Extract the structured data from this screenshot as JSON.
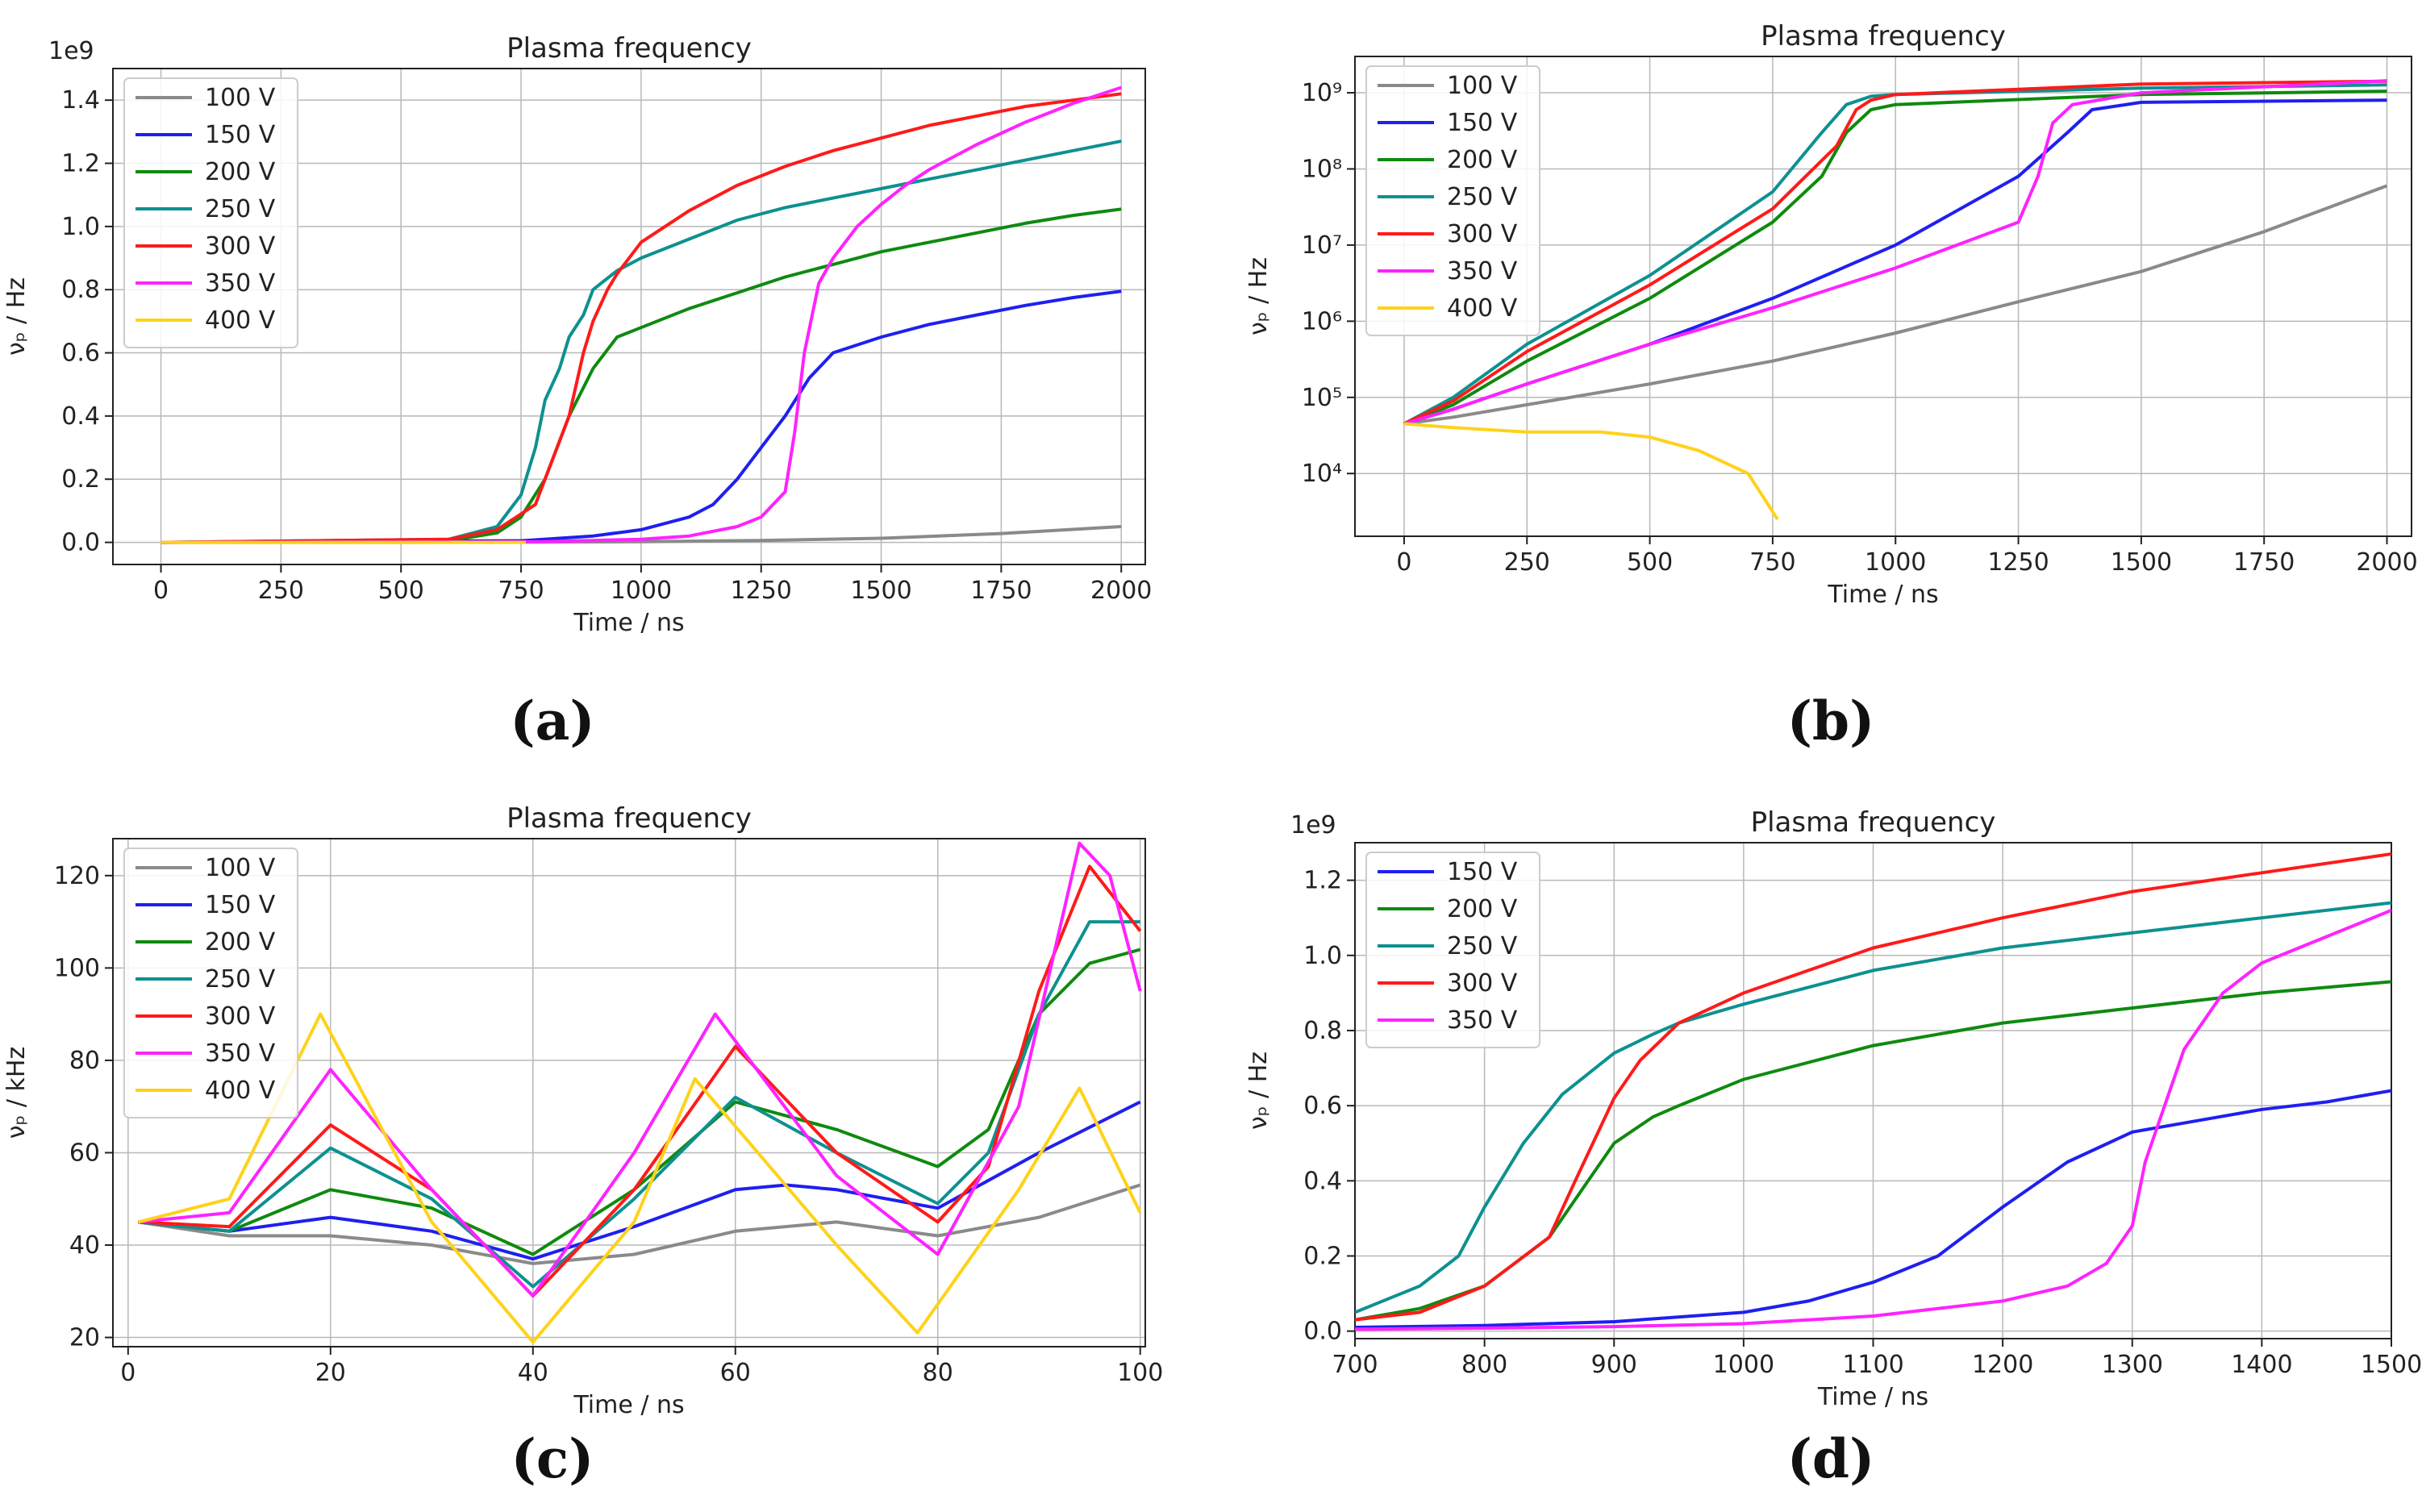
{
  "captions": {
    "a": "(a)",
    "b": "(b)",
    "c": "(c)",
    "d": "(d)"
  },
  "colors": {
    "100 V": "#8a8a8a",
    "150 V": "#1f1ff0",
    "200 V": "#0f8a0f",
    "250 V": "#0e9090",
    "300 V": "#ff1a1a",
    "350 V": "#ff22ff",
    "400 V": "#ffd21a"
  },
  "chart_data": [
    {
      "id": "a",
      "type": "line",
      "title": "Plasma frequency",
      "xlabel": "Time / ns",
      "ylabel": "νₚ / Hz",
      "scale_label": "1e9",
      "yscale": "linear",
      "xlim": [
        -100,
        2050
      ],
      "ylim": [
        -0.07,
        1.5
      ],
      "xticks": [
        0,
        250,
        500,
        750,
        1000,
        1250,
        1500,
        1750,
        2000
      ],
      "xtick_labels": [
        "0",
        "250",
        "500",
        "750",
        "1000",
        "1250",
        "1500",
        "1750",
        "2000"
      ],
      "yticks": [
        0,
        0.2,
        0.4,
        0.6,
        0.8,
        1.0,
        1.2,
        1.4
      ],
      "ytick_labels": [
        "0.0",
        "0.2",
        "0.4",
        "0.6",
        "0.8",
        "1.0",
        "1.2",
        "1.4"
      ],
      "legend": [
        "100 V",
        "150 V",
        "200 V",
        "250 V",
        "300 V",
        "350 V",
        "400 V"
      ],
      "legend_position": "top-left",
      "series": [
        {
          "name": "100 V",
          "x": [
            0,
            500,
            1000,
            1250,
            1500,
            1750,
            2000
          ],
          "y": [
            0,
            0,
            0.002,
            0.006,
            0.013,
            0.028,
            0.05
          ]
        },
        {
          "name": "150 V",
          "x": [
            0,
            750,
            900,
            1000,
            1100,
            1150,
            1200,
            1250,
            1300,
            1350,
            1400,
            1500,
            1600,
            1700,
            1800,
            1900,
            2000
          ],
          "y": [
            0,
            0.005,
            0.02,
            0.04,
            0.08,
            0.12,
            0.2,
            0.3,
            0.4,
            0.52,
            0.6,
            0.65,
            0.69,
            0.72,
            0.75,
            0.775,
            0.795
          ]
        },
        {
          "name": "200 V",
          "x": [
            0,
            600,
            700,
            750,
            800,
            850,
            900,
            950,
            1000,
            1100,
            1200,
            1300,
            1400,
            1500,
            1600,
            1700,
            1800,
            1900,
            2000
          ],
          "y": [
            0,
            0.005,
            0.03,
            0.08,
            0.2,
            0.4,
            0.55,
            0.65,
            0.68,
            0.74,
            0.79,
            0.84,
            0.88,
            0.92,
            0.95,
            0.98,
            1.01,
            1.035,
            1.055
          ]
        },
        {
          "name": "250 V",
          "x": [
            0,
            600,
            700,
            750,
            780,
            800,
            830,
            850,
            880,
            900,
            950,
            1000,
            1100,
            1200,
            1300,
            1400,
            1500,
            1600,
            1700,
            1800,
            1900,
            2000
          ],
          "y": [
            0,
            0.01,
            0.05,
            0.15,
            0.3,
            0.45,
            0.55,
            0.65,
            0.72,
            0.8,
            0.86,
            0.9,
            0.96,
            1.02,
            1.06,
            1.09,
            1.12,
            1.15,
            1.18,
            1.21,
            1.24,
            1.27
          ]
        },
        {
          "name": "300 V",
          "x": [
            0,
            600,
            700,
            780,
            800,
            850,
            880,
            900,
            930,
            950,
            1000,
            1100,
            1200,
            1300,
            1400,
            1500,
            1600,
            1700,
            1800,
            1900,
            2000
          ],
          "y": [
            0,
            0.01,
            0.04,
            0.12,
            0.2,
            0.4,
            0.6,
            0.7,
            0.8,
            0.85,
            0.95,
            1.05,
            1.13,
            1.19,
            1.24,
            1.28,
            1.32,
            1.35,
            1.38,
            1.4,
            1.42
          ]
        },
        {
          "name": "350 V",
          "x": [
            0,
            800,
            1000,
            1100,
            1200,
            1250,
            1300,
            1320,
            1340,
            1370,
            1400,
            1450,
            1500,
            1550,
            1600,
            1700,
            1800,
            1900,
            2000
          ],
          "y": [
            0,
            0.002,
            0.01,
            0.02,
            0.05,
            0.08,
            0.16,
            0.35,
            0.6,
            0.82,
            0.9,
            1.0,
            1.07,
            1.13,
            1.18,
            1.26,
            1.33,
            1.39,
            1.44
          ]
        },
        {
          "name": "400 V",
          "x": [
            0,
            250,
            500,
            760
          ],
          "y": [
            0,
            0,
            0,
            0
          ]
        }
      ]
    },
    {
      "id": "b",
      "type": "line",
      "title": "Plasma frequency",
      "xlabel": "Time / ns",
      "ylabel": "νₚ / Hz",
      "yscale": "log",
      "xlim": [
        -100,
        2050
      ],
      "ylim": [
        1500,
        3000000000
      ],
      "xticks": [
        0,
        250,
        500,
        750,
        1000,
        1250,
        1500,
        1750,
        2000
      ],
      "xtick_labels": [
        "0",
        "250",
        "500",
        "750",
        "1000",
        "1250",
        "1500",
        "1750",
        "2000"
      ],
      "yticks": [
        10000,
        100000,
        1000000,
        10000000,
        100000000,
        1000000000
      ],
      "ytick_labels": [
        "10⁴",
        "10⁵",
        "10⁶",
        "10⁷",
        "10⁸",
        "10⁹"
      ],
      "legend": [
        "100 V",
        "150 V",
        "200 V",
        "250 V",
        "300 V",
        "350 V",
        "400 V"
      ],
      "legend_position": "top-left",
      "series": [
        {
          "name": "100 V",
          "x": [
            0,
            100,
            250,
            500,
            750,
            1000,
            1250,
            1500,
            1750,
            2000
          ],
          "y": [
            45000,
            55000,
            80000,
            150000,
            300000,
            700000,
            1800000,
            4500000,
            15000000,
            60000000
          ]
        },
        {
          "name": "150 V",
          "x": [
            0,
            100,
            250,
            500,
            750,
            1000,
            1250,
            1350,
            1400,
            1500,
            2000
          ],
          "y": [
            45000,
            70000,
            150000,
            500000,
            2000000,
            10000000,
            80000000,
            300000000,
            600000000,
            750000000,
            800000000
          ]
        },
        {
          "name": "200 V",
          "x": [
            0,
            100,
            250,
            500,
            750,
            850,
            900,
            950,
            1000,
            1500,
            2000
          ],
          "y": [
            45000,
            80000,
            300000,
            2000000,
            20000000,
            80000000,
            300000000,
            600000000,
            700000000,
            950000000,
            1050000000
          ]
        },
        {
          "name": "250 V",
          "x": [
            0,
            100,
            250,
            500,
            750,
            850,
            900,
            950,
            1000,
            1500,
            2000
          ],
          "y": [
            45000,
            100000,
            500000,
            4000000,
            50000000,
            300000000,
            700000000,
            900000000,
            950000000,
            1150000000,
            1270000000
          ]
        },
        {
          "name": "300 V",
          "x": [
            0,
            100,
            250,
            500,
            750,
            880,
            920,
            950,
            1000,
            1500,
            2000
          ],
          "y": [
            45000,
            90000,
            400000,
            3000000,
            30000000,
            200000000,
            600000000,
            800000000,
            950000000,
            1300000000,
            1420000000
          ]
        },
        {
          "name": "350 V",
          "x": [
            0,
            100,
            250,
            500,
            750,
            1000,
            1250,
            1290,
            1320,
            1360,
            1500,
            2000
          ],
          "y": [
            45000,
            70000,
            150000,
            500000,
            1500000,
            5000000,
            20000000,
            80000000,
            400000000,
            700000000,
            1000000000,
            1440000000
          ]
        },
        {
          "name": "400 V",
          "x": [
            0,
            100,
            250,
            400,
            500,
            600,
            700,
            730,
            760
          ],
          "y": [
            45000,
            40000,
            35000,
            35000,
            30000,
            20000,
            10000,
            5000,
            2500
          ]
        }
      ]
    },
    {
      "id": "c",
      "type": "line",
      "title": "Plasma frequency",
      "xlabel": "Time / ns",
      "ylabel": "νₚ / kHz",
      "yscale": "linear",
      "xlim": [
        -1.5,
        100.5
      ],
      "ylim": [
        18,
        128
      ],
      "xticks": [
        0,
        20,
        40,
        60,
        80,
        100
      ],
      "xtick_labels": [
        "0",
        "20",
        "40",
        "60",
        "80",
        "100"
      ],
      "yticks": [
        20,
        40,
        60,
        80,
        100,
        120
      ],
      "ytick_labels": [
        "20",
        "40",
        "60",
        "80",
        "100",
        "120"
      ],
      "legend": [
        "100 V",
        "150 V",
        "200 V",
        "250 V",
        "300 V",
        "350 V",
        "400 V"
      ],
      "legend_position": "top-left",
      "series": [
        {
          "name": "100 V",
          "x": [
            1,
            10,
            20,
            30,
            40,
            50,
            60,
            70,
            80,
            90,
            100
          ],
          "y": [
            45,
            42,
            42,
            40,
            36,
            38,
            43,
            45,
            42,
            46,
            53
          ]
        },
        {
          "name": "150 V",
          "x": [
            1,
            10,
            20,
            30,
            40,
            50,
            60,
            65,
            70,
            80,
            90,
            100
          ],
          "y": [
            45,
            43,
            46,
            43,
            37,
            44,
            52,
            53,
            52,
            48,
            60,
            71
          ]
        },
        {
          "name": "200 V",
          "x": [
            1,
            10,
            20,
            30,
            40,
            50,
            60,
            70,
            80,
            85,
            90,
            95,
            100
          ],
          "y": [
            45,
            43,
            52,
            48,
            38,
            52,
            71,
            65,
            57,
            65,
            90,
            101,
            104
          ]
        },
        {
          "name": "250 V",
          "x": [
            1,
            10,
            20,
            30,
            40,
            50,
            60,
            70,
            80,
            85,
            90,
            95,
            100
          ],
          "y": [
            45,
            43,
            61,
            50,
            31,
            50,
            72,
            60,
            49,
            60,
            90,
            110,
            110
          ]
        },
        {
          "name": "300 V",
          "x": [
            1,
            10,
            20,
            30,
            40,
            50,
            60,
            70,
            80,
            85,
            90,
            95,
            100
          ],
          "y": [
            45,
            44,
            66,
            52,
            29,
            52,
            83,
            60,
            45,
            57,
            95,
            122,
            108
          ]
        },
        {
          "name": "350 V",
          "x": [
            1,
            10,
            20,
            30,
            40,
            50,
            58,
            70,
            80,
            88,
            94,
            97,
            100
          ],
          "y": [
            45,
            47,
            78,
            52,
            29,
            60,
            90,
            55,
            38,
            70,
            127,
            120,
            95
          ]
        },
        {
          "name": "400 V",
          "x": [
            1,
            10,
            19,
            30,
            40,
            50,
            56,
            70,
            78,
            88,
            94,
            100
          ],
          "y": [
            45,
            50,
            90,
            45,
            19,
            45,
            76,
            40,
            21,
            52,
            74,
            47
          ]
        }
      ]
    },
    {
      "id": "d",
      "type": "line",
      "title": "Plasma frequency",
      "xlabel": "Time / ns",
      "ylabel": "νₚ / Hz",
      "scale_label": "1e9",
      "yscale": "linear",
      "xlim": [
        700,
        1500
      ],
      "ylim": [
        -0.02,
        1.3
      ],
      "xticks": [
        700,
        800,
        900,
        1000,
        1100,
        1200,
        1300,
        1400,
        1500
      ],
      "xtick_labels": [
        "700",
        "800",
        "900",
        "1000",
        "1100",
        "1200",
        "1300",
        "1400",
        "1500"
      ],
      "yticks": [
        0,
        0.2,
        0.4,
        0.6,
        0.8,
        1.0,
        1.2
      ],
      "ytick_labels": [
        "0.0",
        "0.2",
        "0.4",
        "0.6",
        "0.8",
        "1.0",
        "1.2"
      ],
      "legend": [
        "150 V",
        "200 V",
        "250 V",
        "300 V",
        "350 V"
      ],
      "legend_position": "top-left",
      "series": [
        {
          "name": "150 V",
          "x": [
            700,
            800,
            900,
            1000,
            1050,
            1100,
            1150,
            1200,
            1250,
            1300,
            1350,
            1400,
            1450,
            1500
          ],
          "y": [
            0.01,
            0.015,
            0.025,
            0.05,
            0.08,
            0.13,
            0.2,
            0.33,
            0.45,
            0.53,
            0.56,
            0.59,
            0.61,
            0.64
          ]
        },
        {
          "name": "200 V",
          "x": [
            700,
            750,
            800,
            850,
            880,
            900,
            930,
            950,
            1000,
            1100,
            1200,
            1300,
            1400,
            1500
          ],
          "y": [
            0.03,
            0.06,
            0.12,
            0.25,
            0.4,
            0.5,
            0.57,
            0.6,
            0.67,
            0.76,
            0.82,
            0.86,
            0.9,
            0.93
          ]
        },
        {
          "name": "250 V",
          "x": [
            700,
            750,
            780,
            800,
            830,
            860,
            900,
            930,
            950,
            1000,
            1100,
            1200,
            1300,
            1400,
            1500
          ],
          "y": [
            0.05,
            0.12,
            0.2,
            0.33,
            0.5,
            0.63,
            0.74,
            0.79,
            0.82,
            0.87,
            0.96,
            1.02,
            1.06,
            1.1,
            1.14
          ]
        },
        {
          "name": "300 V",
          "x": [
            700,
            750,
            800,
            850,
            870,
            900,
            920,
            950,
            1000,
            1050,
            1100,
            1200,
            1300,
            1400,
            1500
          ],
          "y": [
            0.03,
            0.05,
            0.12,
            0.25,
            0.4,
            0.62,
            0.72,
            0.82,
            0.9,
            0.96,
            1.02,
            1.1,
            1.17,
            1.22,
            1.27
          ]
        },
        {
          "name": "350 V",
          "x": [
            700,
            800,
            900,
            1000,
            1100,
            1200,
            1250,
            1280,
            1300,
            1310,
            1340,
            1370,
            1400,
            1450,
            1500
          ],
          "y": [
            0.005,
            0.008,
            0.012,
            0.02,
            0.04,
            0.08,
            0.12,
            0.18,
            0.28,
            0.45,
            0.75,
            0.9,
            0.98,
            1.05,
            1.12
          ]
        }
      ]
    }
  ]
}
